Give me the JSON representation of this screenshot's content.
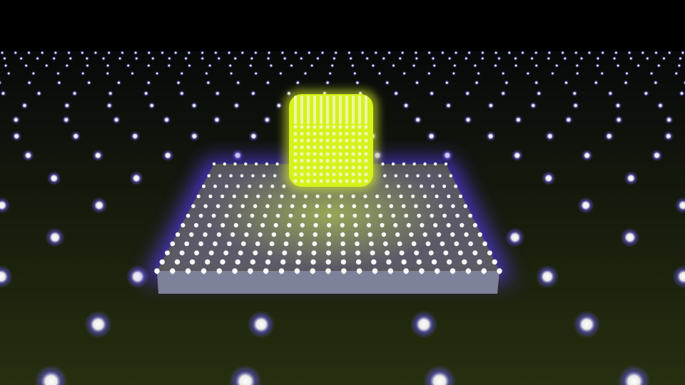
{
  "scene": {
    "description_kind": "render",
    "colors": {
      "sky": "#000000",
      "floor_far": "#07090a",
      "floor_near": "#262f0f",
      "floor_dot": "#ffffff",
      "floor_dot_glow": "#6a5cff",
      "slab_top": "#6f7a2a",
      "slab_side": "#7d8199",
      "slab_dot": "#ffffff",
      "slab_glow": "#5a3cff",
      "cube_body": "#d6f21a",
      "cube_glow": "#e8ff2a",
      "cube_dot": "#f2f7c0",
      "light_pool": "#c9e84a"
    },
    "objects": [
      {
        "name": "floor",
        "kind": "dotted-plane"
      },
      {
        "name": "slab",
        "kind": "dotted-box"
      },
      {
        "name": "cube",
        "kind": "glowing-dotted-cube"
      }
    ]
  }
}
